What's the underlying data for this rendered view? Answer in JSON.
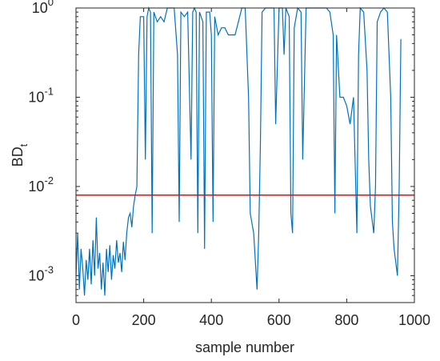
{
  "chart_data": {
    "type": "line",
    "xlabel": "sample number",
    "ylabel": "BD",
    "ylabel_subscript": "t",
    "x": [
      0,
      5,
      10,
      15,
      20,
      25,
      30,
      35,
      40,
      45,
      50,
      55,
      60,
      65,
      70,
      75,
      80,
      85,
      90,
      95,
      100,
      105,
      110,
      115,
      120,
      125,
      130,
      135,
      140,
      145,
      150,
      155,
      160,
      165,
      170,
      175,
      180,
      185,
      190,
      200,
      205,
      210,
      215,
      220,
      225,
      230,
      240,
      250,
      260,
      270,
      280,
      290,
      300,
      305,
      310,
      320,
      330,
      340,
      345,
      350,
      355,
      360,
      365,
      375,
      380,
      385,
      395,
      400,
      405,
      410,
      420,
      430,
      440,
      450,
      460,
      470,
      480,
      490,
      500,
      510,
      515,
      525,
      535,
      540,
      545,
      550,
      560,
      570,
      580,
      585,
      590,
      600,
      610,
      615,
      620,
      630,
      635,
      640,
      645,
      655,
      665,
      670,
      680,
      700,
      720,
      740,
      750,
      760,
      765,
      770,
      780,
      790,
      800,
      810,
      820,
      830,
      835,
      840,
      850,
      860,
      865,
      870,
      880,
      885,
      890,
      900,
      910,
      920,
      930,
      935,
      940,
      950,
      955,
      960
    ],
    "series": [
      {
        "name": "BDt",
        "color": "#0072bd",
        "values": [
          0.001,
          0.003,
          0.0007,
          0.002,
          0.0012,
          0.0006,
          0.0015,
          0.0009,
          0.002,
          0.0008,
          0.0025,
          0.001,
          0.0045,
          0.0012,
          0.0018,
          0.0007,
          0.0014,
          0.0006,
          0.002,
          0.0011,
          0.0022,
          0.0009,
          0.0017,
          0.0012,
          0.0025,
          0.0014,
          0.0018,
          0.0011,
          0.0024,
          0.0015,
          0.003,
          0.0045,
          0.005,
          0.0035,
          0.006,
          0.008,
          0.01,
          0.3,
          0.8,
          0.8,
          0.02,
          0.8,
          1,
          0.9,
          0.003,
          0.9,
          0.7,
          0.8,
          0.7,
          1,
          1,
          1,
          0.3,
          0.004,
          0.9,
          0.8,
          0.9,
          0.02,
          0.9,
          1,
          0.9,
          0.003,
          0.9,
          0.7,
          0.002,
          0.9,
          0.9,
          0.5,
          0.004,
          0.8,
          0.5,
          0.6,
          0.6,
          0.5,
          0.5,
          0.5,
          0.7,
          1,
          1,
          0.1,
          0.005,
          0.003,
          0.0007,
          0.003,
          0.03,
          0.9,
          1,
          1,
          1,
          1,
          0.05,
          1,
          1,
          0.3,
          1,
          0.8,
          0.005,
          0.003,
          0.6,
          1,
          0.9,
          0.02,
          1,
          1,
          1,
          1,
          0.9,
          0.5,
          0.005,
          0.5,
          0.1,
          0.1,
          0.08,
          0.05,
          0.1,
          0.003,
          0.3,
          1,
          0.9,
          0.2,
          0.02,
          0.006,
          0.003,
          0.01,
          0.7,
          0.9,
          1,
          0.9,
          0.1,
          0.004,
          0.002,
          0.001,
          0.01,
          0.45
        ]
      }
    ],
    "hline": {
      "value": 0.008,
      "color": "#ff0000"
    },
    "xlim": [
      0,
      1000
    ],
    "xticks": [
      0,
      200,
      400,
      600,
      800,
      1000
    ],
    "ylim": [
      0.0005,
      1
    ],
    "yscale": "log",
    "yticks": [
      {
        "value": 0.001,
        "label": "10",
        "exponent": "-3"
      },
      {
        "value": 0.01,
        "label": "10",
        "exponent": "-2"
      },
      {
        "value": 0.1,
        "label": "10",
        "exponent": "-1"
      },
      {
        "value": 1,
        "label": "10",
        "exponent": "0"
      }
    ]
  }
}
